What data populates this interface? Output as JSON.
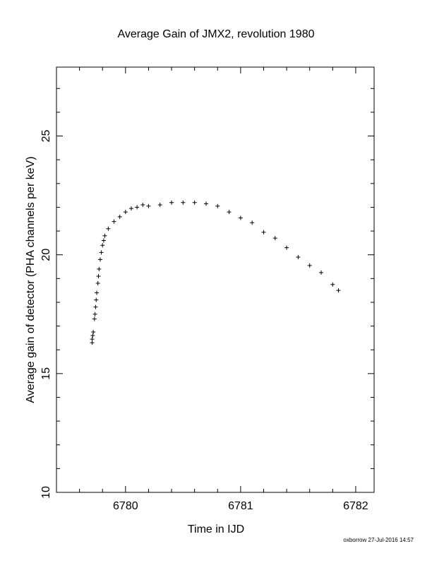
{
  "chart_data": {
    "type": "scatter",
    "title": "Average Gain of JMX2, revolution 1980",
    "x_label": "Time in IJD",
    "y_label": "Average gain of detector (PHA channels per keV)",
    "footer": "oxborrow 27-Jul-2016 14:57",
    "color": "#000000",
    "xlim": [
      6779.4,
      6782.16
    ],
    "ylim": [
      10,
      27.9
    ],
    "xticks": [
      6780,
      6781,
      6782
    ],
    "yticks": [
      10,
      15,
      20,
      25
    ],
    "xticks_minor": [
      6779.6,
      6779.8,
      6780.2,
      6780.4,
      6780.6,
      6780.8,
      6781.2,
      6781.4,
      6781.6,
      6781.8
    ],
    "yticks_minor": [
      11,
      12,
      13,
      14,
      16,
      17,
      18,
      19,
      21,
      22,
      23,
      24,
      26,
      27
    ],
    "x": [
      6779.71,
      6779.71,
      6779.715,
      6779.72,
      6779.73,
      6779.735,
      6779.74,
      6779.745,
      6779.75,
      6779.76,
      6779.765,
      6779.77,
      6779.78,
      6779.79,
      6779.8,
      6779.81,
      6779.82,
      6779.85,
      6779.9,
      6779.95,
      6780.0,
      6780.05,
      6780.1,
      6780.15,
      6780.2,
      6780.3,
      6780.4,
      6780.5,
      6780.6,
      6780.7,
      6780.8,
      6780.9,
      6781.0,
      6781.1,
      6781.2,
      6781.3,
      6781.4,
      6781.5,
      6781.6,
      6781.7,
      6781.8,
      6781.85
    ],
    "values": [
      16.3,
      16.45,
      16.6,
      16.75,
      17.3,
      17.5,
      17.8,
      18.1,
      18.4,
      18.8,
      19.1,
      19.4,
      19.8,
      20.1,
      20.4,
      20.6,
      20.8,
      21.1,
      21.4,
      21.6,
      21.8,
      21.95,
      22.0,
      22.1,
      22.05,
      22.1,
      22.2,
      22.2,
      22.2,
      22.15,
      22.05,
      21.8,
      21.55,
      21.35,
      20.95,
      20.7,
      20.3,
      19.9,
      19.55,
      19.25,
      18.75,
      18.5
    ]
  }
}
